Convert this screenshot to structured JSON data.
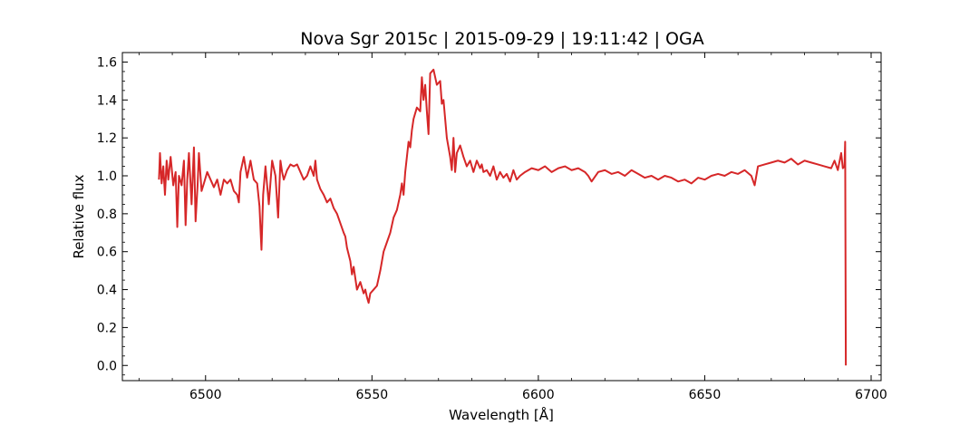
{
  "chart_data": {
    "type": "line",
    "title": "Nova Sgr 2015c | 2015-09-29 | 19:11:42 | OGA",
    "xlabel": "Wavelength [Å]",
    "ylabel": "Relative flux",
    "xlim": [
      6475,
      6703
    ],
    "ylim": [
      -0.08,
      1.65
    ],
    "xticks": [
      6500,
      6550,
      6600,
      6650,
      6700
    ],
    "yticks": [
      0.0,
      0.2,
      0.4,
      0.6,
      0.8,
      1.0,
      1.2,
      1.4,
      1.6
    ],
    "xtick_labels": [
      "6500",
      "6550",
      "6600",
      "6650",
      "6700"
    ],
    "ytick_labels": [
      "0.0",
      "0.2",
      "0.4",
      "0.6",
      "0.8",
      "1.0",
      "1.2",
      "1.4",
      "1.6"
    ],
    "grid": false,
    "legend": "none",
    "colors": {
      "series": "#d62728",
      "axes": "#000000"
    },
    "series": [
      {
        "x": [
          6486.0,
          6486.3,
          6486.8,
          6487.3,
          6487.8,
          6488.3,
          6488.8,
          6489.5,
          6490.3,
          6491.0,
          6491.5,
          6492.0,
          6492.8,
          6493.5,
          6494.0,
          6494.5,
          6495.0,
          6495.8,
          6496.5,
          6497.0,
          6497.6,
          6498.0,
          6498.8,
          6499.5,
          6500.5,
          6501.5,
          6502.5,
          6503.5,
          6504.5,
          6505.5,
          6506.5,
          6507.5,
          6508.5,
          6509.5,
          6510.0,
          6510.5,
          6511.5,
          6512.5,
          6513.5,
          6514.5,
          6515.5,
          6516.2,
          6516.8,
          6517.3,
          6518.0,
          6519.0,
          6520.0,
          6521.0,
          6521.8,
          6522.5,
          6523.0,
          6523.5,
          6524.5,
          6525.5,
          6526.5,
          6527.5,
          6528.5,
          6529.5,
          6530.5,
          6531.5,
          6532.5,
          6533.0,
          6533.5,
          6534.5,
          6535.5,
          6536.5,
          6537.5,
          6538.5,
          6539.5,
          6540.5,
          6541.5,
          6542.0,
          6542.5,
          6543.5,
          6544.0,
          6544.5,
          6545.5,
          6546.5,
          6547.5,
          6548.0,
          6548.5,
          6549.0,
          6549.5,
          6550.5,
          6551.5,
          6552.5,
          6553.5,
          6554.5,
          6555.5,
          6556.5,
          6557.5,
          6558.5,
          6559.0,
          6559.5,
          6560.0,
          6560.5,
          6561.0,
          6561.5,
          6562.0,
          6562.5,
          6563.5,
          6564.5,
          6565.0,
          6565.5,
          6566.0,
          6566.5,
          6567.0,
          6567.5,
          6568.5,
          6569.5,
          6570.5,
          6571.0,
          6571.5,
          6572.0,
          6572.5,
          6573.5,
          6574.0,
          6574.5,
          6575.0,
          6575.5,
          6576.5,
          6577.5,
          6578.5,
          6579.5,
          6580.5,
          6581.5,
          6582.5,
          6583.0,
          6583.5,
          6584.5,
          6585.5,
          6586.5,
          6587.5,
          6588.5,
          6589.5,
          6590.5,
          6591.5,
          6592.5,
          6593.5,
          6594.5,
          6596.0,
          6598.0,
          6600.0,
          6602.0,
          6604.0,
          6606.0,
          6608.0,
          6610.0,
          6612.0,
          6614.0,
          6615.0,
          6616.0,
          6618.0,
          6620.0,
          6622.0,
          6624.0,
          6626.0,
          6628.0,
          6630.0,
          6632.0,
          6634.0,
          6636.0,
          6638.0,
          6640.0,
          6642.0,
          6644.0,
          6646.0,
          6648.0,
          6650.0,
          6652.0,
          6654.0,
          6656.0,
          6658.0,
          6660.0,
          6662.0,
          6664.0,
          6665.0,
          6666.0,
          6668.0,
          6670.0,
          6672.0,
          6674.0,
          6676.0,
          6678.0,
          6680.0,
          6682.0,
          6684.0,
          6686.0,
          6688.0,
          6689.0,
          6690.0,
          6691.0,
          6691.5,
          6692.0,
          6692.2,
          6692.4
        ],
        "values": [
          0.98,
          1.12,
          0.96,
          1.05,
          0.9,
          1.08,
          0.98,
          1.1,
          0.95,
          1.02,
          0.73,
          1.0,
          0.95,
          1.08,
          0.74,
          0.98,
          1.12,
          0.85,
          1.15,
          0.76,
          0.95,
          1.12,
          0.92,
          0.96,
          1.02,
          0.98,
          0.94,
          0.98,
          0.9,
          0.98,
          0.96,
          0.98,
          0.92,
          0.9,
          0.86,
          1.02,
          1.1,
          0.99,
          1.08,
          0.98,
          0.96,
          0.84,
          0.61,
          0.9,
          1.05,
          0.85,
          1.08,
          1.0,
          0.78,
          1.08,
          1.02,
          0.98,
          1.03,
          1.06,
          1.05,
          1.06,
          1.02,
          0.98,
          1.0,
          1.05,
          1.0,
          1.08,
          0.98,
          0.93,
          0.9,
          0.86,
          0.88,
          0.83,
          0.8,
          0.75,
          0.7,
          0.68,
          0.62,
          0.55,
          0.48,
          0.52,
          0.4,
          0.44,
          0.38,
          0.4,
          0.36,
          0.33,
          0.38,
          0.4,
          0.42,
          0.5,
          0.6,
          0.65,
          0.7,
          0.78,
          0.82,
          0.9,
          0.96,
          0.9,
          1.02,
          1.1,
          1.18,
          1.15,
          1.24,
          1.3,
          1.36,
          1.34,
          1.52,
          1.4,
          1.48,
          1.34,
          1.22,
          1.54,
          1.56,
          1.48,
          1.5,
          1.38,
          1.4,
          1.3,
          1.2,
          1.1,
          1.03,
          1.2,
          1.02,
          1.12,
          1.16,
          1.1,
          1.05,
          1.08,
          1.02,
          1.08,
          1.04,
          1.06,
          1.02,
          1.03,
          1.0,
          1.05,
          0.98,
          1.02,
          0.99,
          1.01,
          0.97,
          1.03,
          0.98,
          1.0,
          1.02,
          1.04,
          1.03,
          1.05,
          1.02,
          1.04,
          1.05,
          1.03,
          1.04,
          1.02,
          1.0,
          0.97,
          1.02,
          1.03,
          1.01,
          1.02,
          1.0,
          1.03,
          1.01,
          0.99,
          1.0,
          0.98,
          1.0,
          0.99,
          0.97,
          0.98,
          0.96,
          0.99,
          0.98,
          1.0,
          1.01,
          1.0,
          1.02,
          1.01,
          1.03,
          1.0,
          0.95,
          1.05,
          1.06,
          1.07,
          1.08,
          1.07,
          1.09,
          1.06,
          1.08,
          1.07,
          1.06,
          1.05,
          1.04,
          1.08,
          1.03,
          1.12,
          1.04,
          1.05,
          1.18,
          0.0
        ]
      }
    ]
  }
}
